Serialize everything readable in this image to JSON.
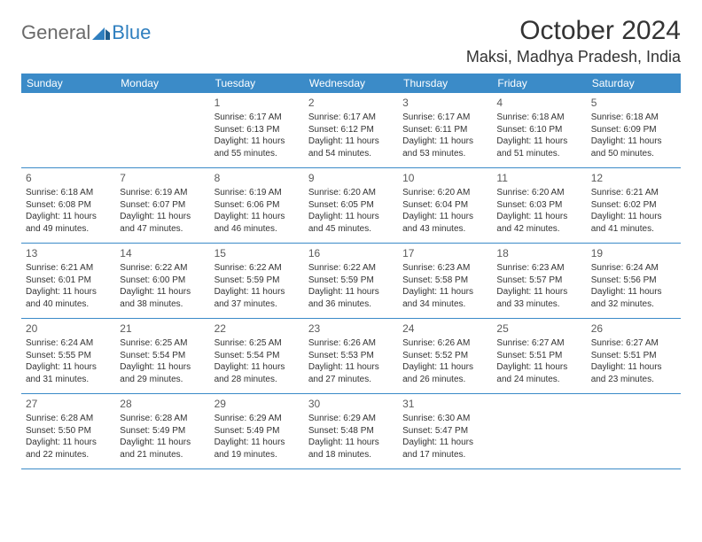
{
  "logo": {
    "text_general": "General",
    "text_blue": "Blue"
  },
  "title": "October 2024",
  "location": "Maksi, Madhya Pradesh, India",
  "weekdays": [
    "Sunday",
    "Monday",
    "Tuesday",
    "Wednesday",
    "Thursday",
    "Friday",
    "Saturday"
  ],
  "colors": {
    "header_bg": "#3b8bc8",
    "header_text": "#ffffff",
    "border": "#3b8bc8",
    "text": "#333333",
    "logo_gray": "#6a6a6a",
    "logo_blue": "#2f7fbf"
  },
  "cell_fontsize": 10,
  "daynum_fontsize": 12,
  "weeks": [
    [
      {
        "n": "",
        "sr": "",
        "ss": "",
        "dl": ""
      },
      {
        "n": "",
        "sr": "",
        "ss": "",
        "dl": ""
      },
      {
        "n": "1",
        "sr": "Sunrise: 6:17 AM",
        "ss": "Sunset: 6:13 PM",
        "dl": "Daylight: 11 hours and 55 minutes."
      },
      {
        "n": "2",
        "sr": "Sunrise: 6:17 AM",
        "ss": "Sunset: 6:12 PM",
        "dl": "Daylight: 11 hours and 54 minutes."
      },
      {
        "n": "3",
        "sr": "Sunrise: 6:17 AM",
        "ss": "Sunset: 6:11 PM",
        "dl": "Daylight: 11 hours and 53 minutes."
      },
      {
        "n": "4",
        "sr": "Sunrise: 6:18 AM",
        "ss": "Sunset: 6:10 PM",
        "dl": "Daylight: 11 hours and 51 minutes."
      },
      {
        "n": "5",
        "sr": "Sunrise: 6:18 AM",
        "ss": "Sunset: 6:09 PM",
        "dl": "Daylight: 11 hours and 50 minutes."
      }
    ],
    [
      {
        "n": "6",
        "sr": "Sunrise: 6:18 AM",
        "ss": "Sunset: 6:08 PM",
        "dl": "Daylight: 11 hours and 49 minutes."
      },
      {
        "n": "7",
        "sr": "Sunrise: 6:19 AM",
        "ss": "Sunset: 6:07 PM",
        "dl": "Daylight: 11 hours and 47 minutes."
      },
      {
        "n": "8",
        "sr": "Sunrise: 6:19 AM",
        "ss": "Sunset: 6:06 PM",
        "dl": "Daylight: 11 hours and 46 minutes."
      },
      {
        "n": "9",
        "sr": "Sunrise: 6:20 AM",
        "ss": "Sunset: 6:05 PM",
        "dl": "Daylight: 11 hours and 45 minutes."
      },
      {
        "n": "10",
        "sr": "Sunrise: 6:20 AM",
        "ss": "Sunset: 6:04 PM",
        "dl": "Daylight: 11 hours and 43 minutes."
      },
      {
        "n": "11",
        "sr": "Sunrise: 6:20 AM",
        "ss": "Sunset: 6:03 PM",
        "dl": "Daylight: 11 hours and 42 minutes."
      },
      {
        "n": "12",
        "sr": "Sunrise: 6:21 AM",
        "ss": "Sunset: 6:02 PM",
        "dl": "Daylight: 11 hours and 41 minutes."
      }
    ],
    [
      {
        "n": "13",
        "sr": "Sunrise: 6:21 AM",
        "ss": "Sunset: 6:01 PM",
        "dl": "Daylight: 11 hours and 40 minutes."
      },
      {
        "n": "14",
        "sr": "Sunrise: 6:22 AM",
        "ss": "Sunset: 6:00 PM",
        "dl": "Daylight: 11 hours and 38 minutes."
      },
      {
        "n": "15",
        "sr": "Sunrise: 6:22 AM",
        "ss": "Sunset: 5:59 PM",
        "dl": "Daylight: 11 hours and 37 minutes."
      },
      {
        "n": "16",
        "sr": "Sunrise: 6:22 AM",
        "ss": "Sunset: 5:59 PM",
        "dl": "Daylight: 11 hours and 36 minutes."
      },
      {
        "n": "17",
        "sr": "Sunrise: 6:23 AM",
        "ss": "Sunset: 5:58 PM",
        "dl": "Daylight: 11 hours and 34 minutes."
      },
      {
        "n": "18",
        "sr": "Sunrise: 6:23 AM",
        "ss": "Sunset: 5:57 PM",
        "dl": "Daylight: 11 hours and 33 minutes."
      },
      {
        "n": "19",
        "sr": "Sunrise: 6:24 AM",
        "ss": "Sunset: 5:56 PM",
        "dl": "Daylight: 11 hours and 32 minutes."
      }
    ],
    [
      {
        "n": "20",
        "sr": "Sunrise: 6:24 AM",
        "ss": "Sunset: 5:55 PM",
        "dl": "Daylight: 11 hours and 31 minutes."
      },
      {
        "n": "21",
        "sr": "Sunrise: 6:25 AM",
        "ss": "Sunset: 5:54 PM",
        "dl": "Daylight: 11 hours and 29 minutes."
      },
      {
        "n": "22",
        "sr": "Sunrise: 6:25 AM",
        "ss": "Sunset: 5:54 PM",
        "dl": "Daylight: 11 hours and 28 minutes."
      },
      {
        "n": "23",
        "sr": "Sunrise: 6:26 AM",
        "ss": "Sunset: 5:53 PM",
        "dl": "Daylight: 11 hours and 27 minutes."
      },
      {
        "n": "24",
        "sr": "Sunrise: 6:26 AM",
        "ss": "Sunset: 5:52 PM",
        "dl": "Daylight: 11 hours and 26 minutes."
      },
      {
        "n": "25",
        "sr": "Sunrise: 6:27 AM",
        "ss": "Sunset: 5:51 PM",
        "dl": "Daylight: 11 hours and 24 minutes."
      },
      {
        "n": "26",
        "sr": "Sunrise: 6:27 AM",
        "ss": "Sunset: 5:51 PM",
        "dl": "Daylight: 11 hours and 23 minutes."
      }
    ],
    [
      {
        "n": "27",
        "sr": "Sunrise: 6:28 AM",
        "ss": "Sunset: 5:50 PM",
        "dl": "Daylight: 11 hours and 22 minutes."
      },
      {
        "n": "28",
        "sr": "Sunrise: 6:28 AM",
        "ss": "Sunset: 5:49 PM",
        "dl": "Daylight: 11 hours and 21 minutes."
      },
      {
        "n": "29",
        "sr": "Sunrise: 6:29 AM",
        "ss": "Sunset: 5:49 PM",
        "dl": "Daylight: 11 hours and 19 minutes."
      },
      {
        "n": "30",
        "sr": "Sunrise: 6:29 AM",
        "ss": "Sunset: 5:48 PM",
        "dl": "Daylight: 11 hours and 18 minutes."
      },
      {
        "n": "31",
        "sr": "Sunrise: 6:30 AM",
        "ss": "Sunset: 5:47 PM",
        "dl": "Daylight: 11 hours and 17 minutes."
      },
      {
        "n": "",
        "sr": "",
        "ss": "",
        "dl": ""
      },
      {
        "n": "",
        "sr": "",
        "ss": "",
        "dl": ""
      }
    ]
  ]
}
